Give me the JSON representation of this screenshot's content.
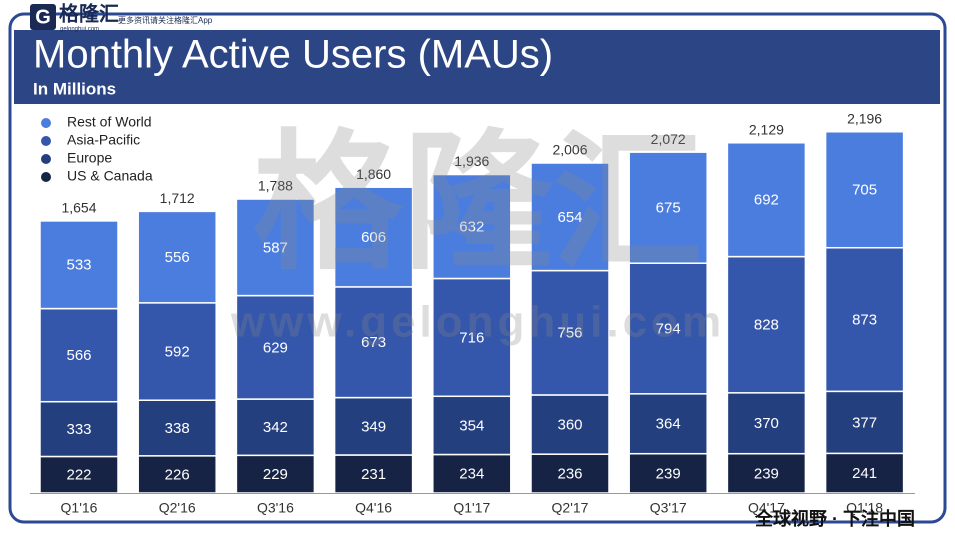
{
  "chart_data": {
    "type": "stacked_bar",
    "title": "Monthly Active Users (MAUs)",
    "subtitle": "In Millions",
    "categories": [
      "Q1'16",
      "Q2'16",
      "Q3'16",
      "Q4'16",
      "Q1'17",
      "Q2'17",
      "Q3'17",
      "Q4'17",
      "Q1'18"
    ],
    "series": [
      {
        "name": "Rest of World",
        "color": "#4b7ddf",
        "values": [
          533,
          556,
          587,
          606,
          632,
          654,
          675,
          692,
          705
        ]
      },
      {
        "name": "Asia-Pacific",
        "color": "#3457ab",
        "values": [
          566,
          592,
          629,
          673,
          716,
          756,
          794,
          828,
          873
        ]
      },
      {
        "name": "Europe",
        "color": "#243f7e",
        "values": [
          333,
          338,
          342,
          349,
          354,
          360,
          364,
          370,
          377
        ]
      },
      {
        "name": "US & Canada",
        "color": "#162344",
        "values": [
          222,
          226,
          229,
          231,
          234,
          236,
          239,
          239,
          241
        ]
      }
    ],
    "totals": {
      "values": [
        1654,
        1712,
        1788,
        1860,
        1936,
        2006,
        2072,
        2129,
        2196
      ],
      "value_labels": [
        "1,654",
        "1,712",
        "1,788",
        "1,860",
        "1,936",
        "2,006",
        "2,072",
        "2,129",
        "2,196"
      ]
    },
    "legend": "top-left"
  },
  "branding": {
    "logo": "格隆汇",
    "logo_site": "gelonghui.com",
    "tagline": "更多资讯请关注格隆汇App",
    "watermark": "格隆汇",
    "watermark_url": "www.gelonghui.com",
    "footer": "全球视野 · 下注中国"
  }
}
